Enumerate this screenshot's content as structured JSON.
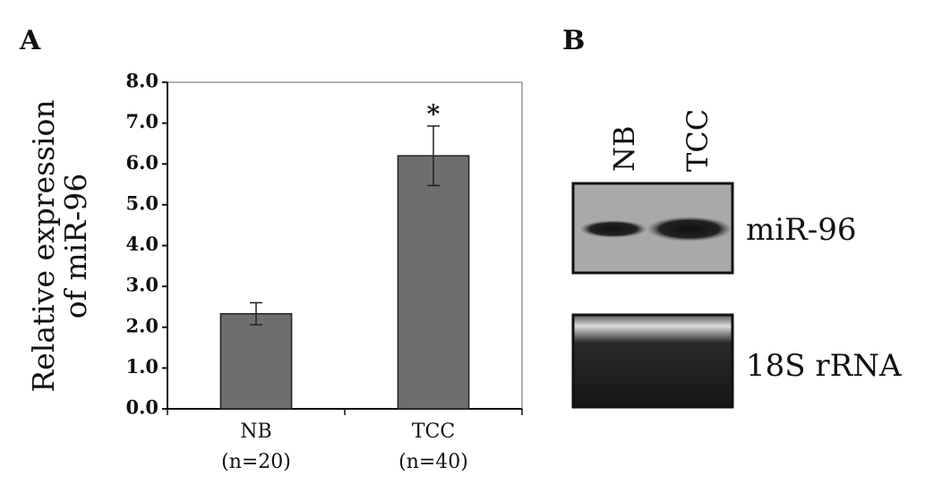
{
  "chart_data": {
    "type": "bar",
    "panel_label": "A",
    "y_label": [
      "Relative expression",
      "of miR-96"
    ],
    "categories": [
      "NB",
      "TCC"
    ],
    "category_notes": [
      "(n=20)",
      "(n=40)"
    ],
    "values": [
      2.33,
      6.2
    ],
    "errors": [
      0.27,
      0.73
    ],
    "color": "#6e6e6e",
    "annotations": [
      null,
      "*"
    ],
    "ylim": [
      0,
      8
    ],
    "yticks": [
      {
        "value": 0,
        "label": "0.0"
      },
      {
        "value": 1,
        "label": "1.0"
      },
      {
        "value": 2,
        "label": "2.0"
      },
      {
        "value": 3,
        "label": "3.0"
      },
      {
        "value": 4,
        "label": "4.0"
      },
      {
        "value": 5,
        "label": "5.0"
      },
      {
        "value": 6,
        "label": "6.0"
      },
      {
        "value": 7,
        "label": "7.0"
      },
      {
        "value": 8,
        "label": "8.0"
      }
    ]
  },
  "blot": {
    "panel_label": "B",
    "lanes": [
      "NB",
      "TCC"
    ],
    "bands": [
      "miR-96",
      "18S rRNA"
    ]
  }
}
